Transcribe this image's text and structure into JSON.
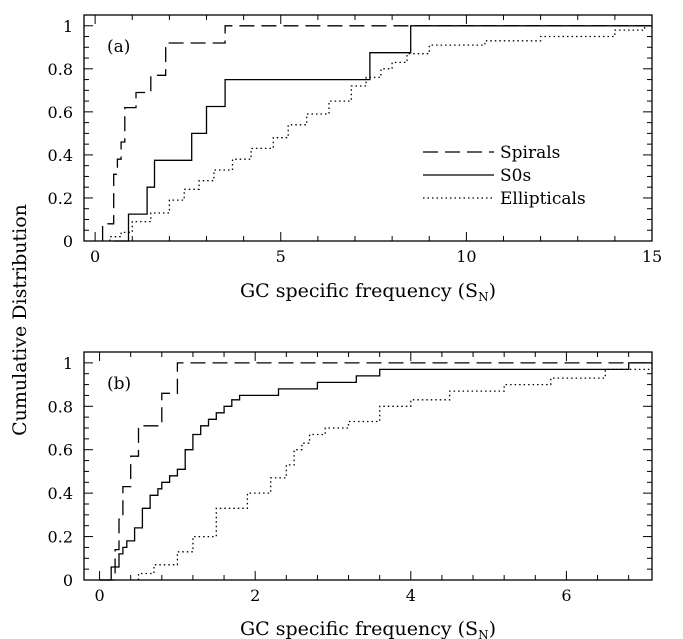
{
  "ylabel": "Cumulative Distribution",
  "chart_data": [
    {
      "type": "line",
      "panel_label": "(a)",
      "xlabel_main": "GC specific frequency (S",
      "xlabel_sub": "N",
      "xlabel_close": ")",
      "xlim": [
        -0.3,
        15
      ],
      "ylim": [
        0,
        1.05
      ],
      "xticks": [
        0,
        5,
        10,
        15
      ],
      "yticks": [
        0,
        0.2,
        0.4,
        0.6,
        0.8,
        1
      ],
      "legend": {
        "placement": "right-middle"
      },
      "series": [
        {
          "name": "Spirals",
          "style": "dashed",
          "x": [
            0.2,
            0.5,
            0.6,
            0.7,
            0.8,
            0.9,
            1.1,
            1.5,
            1.9,
            2.1,
            3.5,
            15
          ],
          "y": [
            0.08,
            0.31,
            0.38,
            0.46,
            0.62,
            0.62,
            0.69,
            0.77,
            0.92,
            0.92,
            1.0,
            1.0
          ]
        },
        {
          "name": "S0s",
          "style": "solid",
          "x": [
            0.5,
            0.9,
            1.4,
            1.6,
            2.6,
            3.0,
            3.5,
            6.8,
            7.4,
            8.5,
            15
          ],
          "y": [
            0.0,
            0.125,
            0.25,
            0.375,
            0.5,
            0.625,
            0.75,
            0.75,
            0.875,
            1.0,
            1.0
          ]
        },
        {
          "name": "Ellipticals",
          "style": "dotted",
          "x": [
            0.4,
            0.7,
            1.0,
            1.5,
            2.0,
            2.4,
            2.8,
            3.2,
            3.7,
            4.2,
            4.8,
            5.2,
            5.7,
            6.3,
            6.9,
            7.3,
            7.7,
            8.0,
            8.4,
            9.0,
            10.5,
            12.0,
            14.0,
            14.8
          ],
          "y": [
            0.02,
            0.04,
            0.09,
            0.13,
            0.19,
            0.24,
            0.28,
            0.33,
            0.38,
            0.43,
            0.48,
            0.54,
            0.59,
            0.65,
            0.72,
            0.76,
            0.8,
            0.83,
            0.87,
            0.91,
            0.93,
            0.95,
            0.98,
            1.0
          ]
        }
      ]
    },
    {
      "type": "line",
      "panel_label": "(b)",
      "xlabel_main": "GC specific frequency (S",
      "xlabel_sub": "N",
      "xlabel_close": ")",
      "xlim": [
        -0.2,
        7.1
      ],
      "ylim": [
        0,
        1.05
      ],
      "xticks": [
        0,
        2,
        4,
        6
      ],
      "yticks": [
        0,
        0.2,
        0.4,
        0.6,
        0.8,
        1
      ],
      "series": [
        {
          "name": "Spirals",
          "style": "dashed",
          "x": [
            0.0,
            0.2,
            0.25,
            0.3,
            0.4,
            0.5,
            0.6,
            0.8,
            1.0,
            7.1
          ],
          "y": [
            0.0,
            0.14,
            0.28,
            0.43,
            0.57,
            0.71,
            0.71,
            0.86,
            1.0,
            1.0
          ]
        },
        {
          "name": "S0s",
          "style": "solid",
          "x": [
            0.0,
            0.15,
            0.25,
            0.3,
            0.35,
            0.45,
            0.55,
            0.65,
            0.75,
            0.8,
            0.9,
            1.0,
            1.1,
            1.2,
            1.3,
            1.4,
            1.5,
            1.6,
            1.7,
            1.8,
            2.0,
            2.3,
            2.8,
            3.3,
            3.6,
            6.8,
            7.1
          ],
          "y": [
            0.0,
            0.06,
            0.12,
            0.15,
            0.18,
            0.24,
            0.33,
            0.39,
            0.42,
            0.45,
            0.48,
            0.51,
            0.6,
            0.67,
            0.71,
            0.74,
            0.77,
            0.8,
            0.83,
            0.85,
            0.85,
            0.88,
            0.91,
            0.94,
            0.97,
            1.0,
            1.0
          ]
        },
        {
          "name": "Ellipticals",
          "style": "dotted",
          "x": [
            0.5,
            0.7,
            1.0,
            1.2,
            1.5,
            1.9,
            2.2,
            2.4,
            2.5,
            2.6,
            2.7,
            2.9,
            3.2,
            3.6,
            4.0,
            4.5,
            5.2,
            5.8,
            6.5,
            7.1
          ],
          "y": [
            0.03,
            0.07,
            0.13,
            0.2,
            0.33,
            0.4,
            0.47,
            0.53,
            0.6,
            0.63,
            0.67,
            0.7,
            0.73,
            0.8,
            0.83,
            0.87,
            0.9,
            0.93,
            0.97,
            1.0
          ]
        }
      ]
    }
  ]
}
